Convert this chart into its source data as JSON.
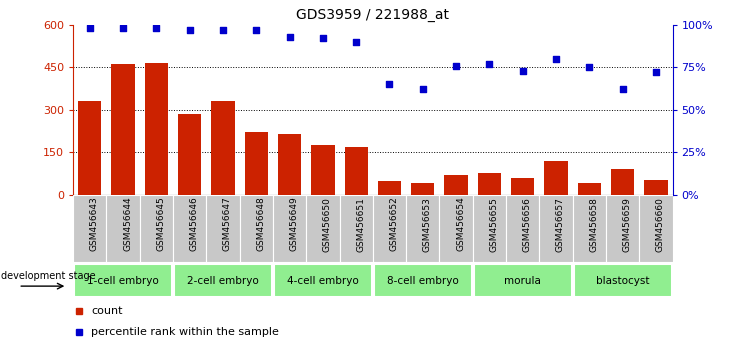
{
  "title": "GDS3959 / 221988_at",
  "samples": [
    "GSM456643",
    "GSM456644",
    "GSM456645",
    "GSM456646",
    "GSM456647",
    "GSM456648",
    "GSM456649",
    "GSM456650",
    "GSM456651",
    "GSM456652",
    "GSM456653",
    "GSM456654",
    "GSM456655",
    "GSM456656",
    "GSM456657",
    "GSM456658",
    "GSM456659",
    "GSM456660"
  ],
  "counts": [
    330,
    460,
    465,
    285,
    330,
    220,
    215,
    175,
    168,
    50,
    42,
    70,
    75,
    60,
    118,
    42,
    90,
    52
  ],
  "percentile_ranks": [
    98,
    98,
    98,
    97,
    97,
    97,
    93,
    92,
    90,
    65,
    62,
    76,
    77,
    73,
    80,
    75,
    62,
    72
  ],
  "bar_color": "#cc2200",
  "dot_color": "#0000cc",
  "ylim_left": [
    0,
    600
  ],
  "ylim_right": [
    0,
    100
  ],
  "yticks_left": [
    0,
    150,
    300,
    450,
    600
  ],
  "yticks_right": [
    0,
    25,
    50,
    75,
    100
  ],
  "ytick_labels_left": [
    "0",
    "150",
    "300",
    "450",
    "600"
  ],
  "ytick_labels_right": [
    "0%",
    "25%",
    "50%",
    "75%",
    "100%"
  ],
  "grid_lines": [
    150,
    300,
    450
  ],
  "stages": [
    {
      "label": "1-cell embryo",
      "start": 0,
      "end": 3
    },
    {
      "label": "2-cell embryo",
      "start": 3,
      "end": 6
    },
    {
      "label": "4-cell embryo",
      "start": 6,
      "end": 9
    },
    {
      "label": "8-cell embryo",
      "start": 9,
      "end": 12
    },
    {
      "label": "morula",
      "start": 12,
      "end": 15
    },
    {
      "label": "blastocyst",
      "start": 15,
      "end": 18
    }
  ],
  "stage_color": "#90ee90",
  "sample_bg_color": "#c8c8c8",
  "legend_count_label": "count",
  "legend_pct_label": "percentile rank within the sample",
  "dev_stage_label": "development stage"
}
